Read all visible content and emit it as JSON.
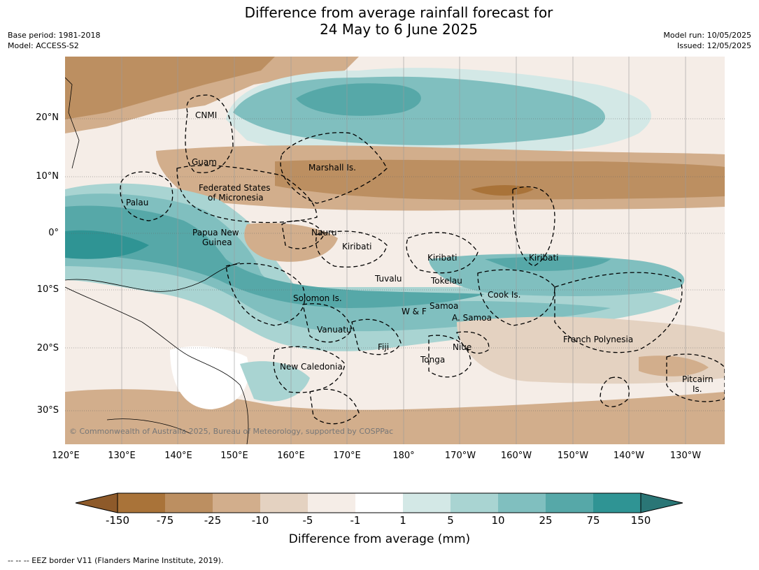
{
  "header": {
    "title_line1": "Difference from average rainfall forecast for",
    "title_line2": "24 May to 6 June 2025",
    "base_period": "Base period: 1981-2018",
    "model": "Model: ACCESS-S2",
    "model_run": "Model run: 10/05/2025",
    "issued": "Issued: 12/05/2025"
  },
  "map": {
    "lat_ticks": [
      "20°N",
      "10°N",
      "0°",
      "10°S",
      "20°S",
      "30°S"
    ],
    "lon_ticks": [
      "120°E",
      "130°E",
      "140°E",
      "150°E",
      "160°E",
      "170°E",
      "180°",
      "170°W",
      "160°W",
      "150°W",
      "140°W",
      "130°W"
    ],
    "places": [
      "CNMI",
      "Guam",
      "Marshall Is.",
      "Federated States",
      "of Micronesia",
      "Palau",
      "Papua New",
      "Guinea",
      "Nauru",
      "Kiribati",
      "Kiribati",
      "Kiribati",
      "Tuvalu",
      "Tokelau",
      "Solomon Is.",
      "W & F",
      "Samoa",
      "A. Samoa",
      "Cook Is.",
      "Vanuatu",
      "Fiji",
      "Niue",
      "Tonga",
      "French Polynesia",
      "New Caledonia",
      "Pitcairn",
      "Is."
    ],
    "credit": "© Commonwealth of Australia 2025, Bureau of Meteorology, supported by COSPPac"
  },
  "colorbar": {
    "title": "Difference from average (mm)",
    "labels": [
      "-150",
      "-75",
      "-25",
      "-10",
      "-5",
      "-1",
      "1",
      "5",
      "10",
      "25",
      "75",
      "150"
    ],
    "colors": [
      "#8e5a2a",
      "#a97339",
      "#bc8f61",
      "#d2ae8c",
      "#e4d2c1",
      "#f5ede7",
      "#ffffff",
      "#d3e8e6",
      "#a9d4d2",
      "#80bfbf",
      "#56a8a8",
      "#2f9494",
      "#2a7676"
    ]
  },
  "footnote": "--  --  -- EEZ border V11 (Flanders Marine Institute, 2019)."
}
